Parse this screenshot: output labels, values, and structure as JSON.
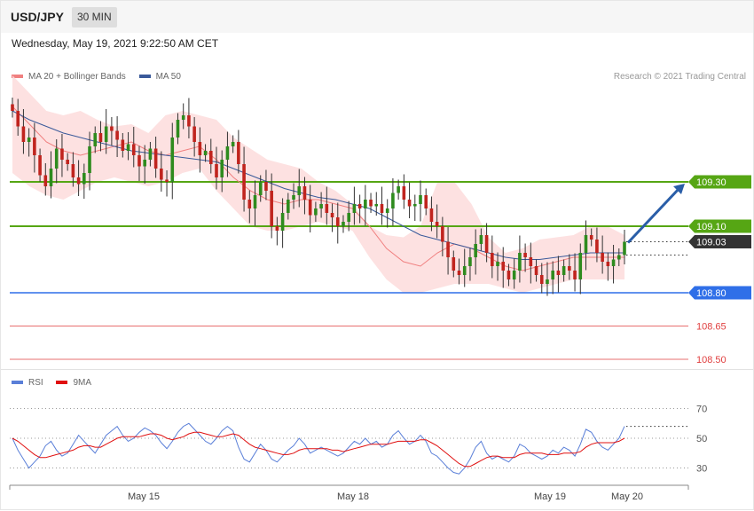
{
  "header": {
    "symbol": "USD/JPY",
    "interval": "30 MIN"
  },
  "timestamp": "Wednesday, May 19, 2021 9:22:50 AM CET",
  "credit": "Research © 2021 Trading Central",
  "colors": {
    "ma20": "#f08080",
    "ma50": "#3a5a9a",
    "bands": "#fddcdc",
    "bull": "#2e8b1e",
    "bear": "#c0241e",
    "resistance": "#56a614",
    "support": "#2f6fe8",
    "support_red": "#e04040",
    "current": "#333333",
    "rsi": "#5a7fd8",
    "rsi_ma": "#e01010",
    "arrow": "#2a5ea8"
  },
  "chart_data": [
    {
      "type": "candlestick",
      "legend": [
        {
          "label": "MA 20 + Bollinger Bands",
          "color": "#f08080"
        },
        {
          "label": "MA 50",
          "color": "#3a5a9a"
        }
      ],
      "x_ticks": [
        "May 15",
        "May 18",
        "May 19",
        "May 20"
      ],
      "ylim": [
        108.45,
        109.8
      ],
      "close_series": [
        109.62,
        109.55,
        109.48,
        109.5,
        109.42,
        109.33,
        109.28,
        109.36,
        109.45,
        109.4,
        109.38,
        109.32,
        109.29,
        109.34,
        109.46,
        109.52,
        109.48,
        109.55,
        109.53,
        109.49,
        109.44,
        109.47,
        109.42,
        109.37,
        109.4,
        109.45,
        109.36,
        109.31,
        109.3,
        109.5,
        109.58,
        109.6,
        109.55,
        109.48,
        109.42,
        109.44,
        109.38,
        109.32,
        109.4,
        109.46,
        109.48,
        109.38,
        109.22,
        109.18,
        109.24,
        109.3,
        109.26,
        109.1,
        109.08,
        109.16,
        109.22,
        109.24,
        109.28,
        109.22,
        109.15,
        109.18,
        109.2,
        109.16,
        109.14,
        109.1,
        109.12,
        109.16,
        109.2,
        109.18,
        109.22,
        109.19,
        109.2,
        109.16,
        109.18,
        109.25,
        109.28,
        109.22,
        109.19,
        109.2,
        109.24,
        109.18,
        109.12,
        109.1,
        109.03,
        108.96,
        108.9,
        108.88,
        108.92,
        108.96,
        109.02,
        109.06,
        108.98,
        108.92,
        108.94,
        108.9,
        108.86,
        108.9,
        108.98,
        108.96,
        108.92,
        108.88,
        108.84,
        108.86,
        108.9,
        108.88,
        108.92,
        108.9,
        108.86,
        108.98,
        109.06,
        109.04,
        108.98,
        108.94,
        108.92,
        108.95,
        108.97,
        109.03
      ],
      "open_last": 108.97,
      "bollinger_upper": [
        109.78,
        109.7,
        109.62,
        109.6,
        109.62,
        109.58,
        109.55,
        109.56,
        109.52,
        109.6,
        109.62,
        109.6,
        109.58,
        109.5,
        109.45,
        109.4,
        109.38,
        109.36,
        109.3,
        109.26,
        109.2,
        109.1,
        109.06,
        109.05,
        109.1,
        109.3,
        109.3,
        109.2,
        109.05,
        108.98,
        109.0,
        109.04,
        109.05,
        109.06,
        109.1,
        109.1,
        109.06
      ],
      "bollinger_lower": [
        109.34,
        109.28,
        109.24,
        109.22,
        109.26,
        109.3,
        109.32,
        109.3,
        109.28,
        109.3,
        109.34,
        109.36,
        109.26,
        109.18,
        109.1,
        109.08,
        109.08,
        109.1,
        109.12,
        109.1,
        109.08,
        108.96,
        108.86,
        108.8,
        108.8,
        108.82,
        108.84,
        108.84,
        108.84,
        108.82,
        108.8,
        108.82,
        108.84,
        108.86,
        108.86,
        108.86,
        108.86
      ],
      "ma20": [
        109.64,
        109.56,
        109.48,
        109.44,
        109.42,
        109.44,
        109.46,
        109.48,
        109.44,
        109.42,
        109.44,
        109.46,
        109.4,
        109.32,
        109.26,
        109.22,
        109.2,
        109.22,
        109.22,
        109.2,
        109.18,
        109.1,
        109.0,
        108.94,
        108.92,
        108.98,
        109.02,
        109.0,
        108.96,
        108.92,
        108.9,
        108.92,
        108.94,
        108.96,
        108.96,
        108.96,
        108.96
      ],
      "ma50": [
        109.62,
        109.58,
        109.55,
        109.52,
        109.5,
        109.48,
        109.46,
        109.44,
        109.43,
        109.42,
        109.41,
        109.4,
        109.39,
        109.36,
        109.33,
        109.3,
        109.27,
        109.25,
        109.23,
        109.22,
        109.2,
        109.18,
        109.14,
        109.1,
        109.06,
        109.04,
        109.02,
        109.0,
        108.98,
        108.96,
        108.95,
        108.95,
        108.96,
        108.97,
        108.98,
        108.98,
        108.98
      ],
      "levels": [
        {
          "value": "109.30",
          "kind": "resistance"
        },
        {
          "value": "109.10",
          "kind": "resistance"
        },
        {
          "value": "109.03",
          "kind": "current"
        },
        {
          "value": "108.80",
          "kind": "support"
        },
        {
          "value": "108.65",
          "kind": "support-minor"
        },
        {
          "value": "108.50",
          "kind": "support-minor"
        }
      ],
      "projection": {
        "from": 109.03,
        "to": 109.3,
        "direction": "up"
      }
    },
    {
      "type": "line",
      "legend": [
        {
          "label": "RSI",
          "color": "#5a7fd8"
        },
        {
          "label": "9MA",
          "color": "#e01010"
        }
      ],
      "y_ticks": [
        "70",
        "50",
        "30"
      ],
      "ylim": [
        20,
        80
      ],
      "rsi": [
        50,
        42,
        36,
        30,
        34,
        38,
        45,
        48,
        42,
        38,
        40,
        46,
        52,
        48,
        44,
        40,
        46,
        52,
        55,
        58,
        52,
        48,
        50,
        54,
        57,
        55,
        52,
        47,
        43,
        48,
        54,
        58,
        60,
        56,
        52,
        48,
        46,
        50,
        55,
        58,
        55,
        44,
        36,
        34,
        40,
        46,
        42,
        36,
        34,
        38,
        42,
        45,
        50,
        46,
        40,
        42,
        44,
        42,
        40,
        38,
        40,
        44,
        48,
        46,
        50,
        46,
        48,
        44,
        46,
        52,
        55,
        50,
        46,
        48,
        52,
        48,
        40,
        38,
        34,
        30,
        27,
        26,
        30,
        36,
        44,
        48,
        40,
        36,
        38,
        36,
        34,
        38,
        46,
        44,
        40,
        38,
        36,
        38,
        42,
        40,
        44,
        42,
        38,
        46,
        56,
        54,
        48,
        44,
        42,
        46,
        50,
        58
      ],
      "rsi_ma": [
        50,
        48,
        45,
        42,
        39,
        37,
        37,
        38,
        39,
        40,
        41,
        42,
        44,
        45,
        45,
        44,
        44,
        46,
        48,
        50,
        51,
        51,
        51,
        51,
        52,
        53,
        53,
        52,
        50,
        49,
        50,
        51,
        53,
        54,
        54,
        53,
        52,
        51,
        51,
        52,
        53,
        52,
        49,
        46,
        44,
        43,
        42,
        41,
        40,
        39,
        39,
        40,
        42,
        43,
        43,
        43,
        43,
        43,
        42,
        42,
        41,
        42,
        43,
        44,
        45,
        46,
        46,
        46,
        46,
        47,
        48,
        48,
        48,
        48,
        49,
        49,
        47,
        45,
        42,
        39,
        36,
        33,
        31,
        31,
        33,
        35,
        37,
        38,
        38,
        37,
        37,
        37,
        39,
        40,
        40,
        40,
        40,
        39,
        39,
        39,
        40,
        40,
        40,
        41,
        44,
        46,
        47,
        47,
        47,
        47,
        48,
        50
      ]
    }
  ]
}
